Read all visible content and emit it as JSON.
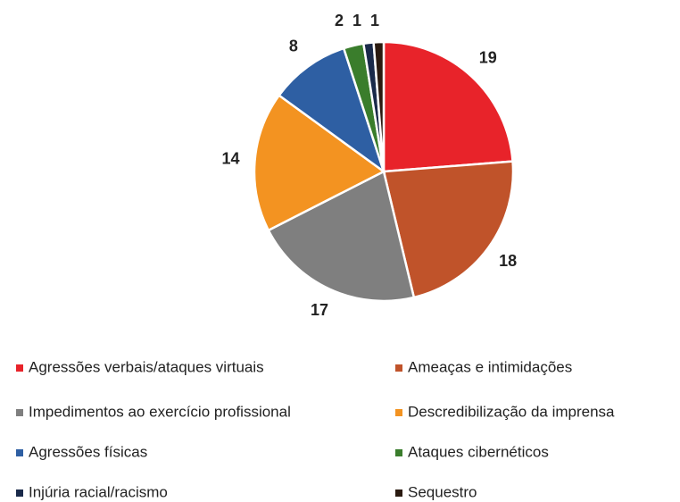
{
  "chart_data": {
    "type": "pie",
    "categories": [
      "Agressões verbais/ataques virtuais",
      "Ameaças e intimidações",
      "Impedimentos ao exercício profissional",
      "Descredibilização da imprensa",
      "Agressões físicas",
      "Ataques cibernéticos",
      "Injúria racial/racismo",
      "Sequestro"
    ],
    "values": [
      19,
      18,
      17,
      14,
      8,
      2,
      1,
      1
    ],
    "colors": [
      "#e8232a",
      "#c0532a",
      "#7f7f7f",
      "#f39321",
      "#2e5fa3",
      "#3a7d2c",
      "#1a2a4a",
      "#2a1a10"
    ],
    "legend": "bottom"
  }
}
